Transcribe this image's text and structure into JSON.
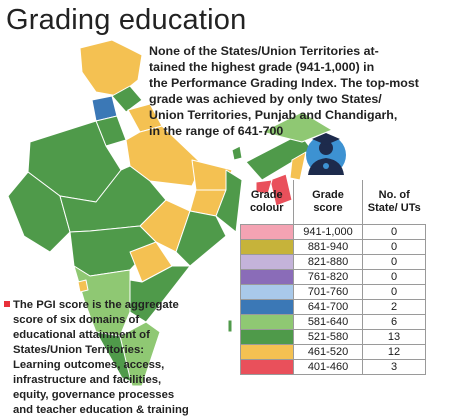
{
  "title": "Grading education",
  "description_lines": [
    "None of the States/Union Territories at-",
    "tained the highest grade (941-1,000) in",
    "the Performance Grading Index. The top-most",
    "grade was achieved by only two States/",
    "Union Territories, Punjab and Chandigarh,",
    "in the range of 641-700"
  ],
  "note_lines": [
    "The PGI score is the aggregate",
    "score of six domains of",
    "educational attainment of",
    "States/Union Territories:",
    "Learning outcomes, access,",
    "infrastructure and facilities,",
    "equity, governance processes",
    "and teacher education & training"
  ],
  "table": {
    "headers": [
      "Grade colour",
      "Grade score",
      "No. of State/ UTs"
    ],
    "rows": [
      {
        "color": "#f4a3b3",
        "score": "941-1,000",
        "count": 0
      },
      {
        "color": "#c6b33a",
        "score": "881-940",
        "count": 0
      },
      {
        "color": "#c4b3da",
        "score": "821-880",
        "count": 0
      },
      {
        "color": "#8a6cb8",
        "score": "761-820",
        "count": 0
      },
      {
        "color": "#a9c9ea",
        "score": "701-760",
        "count": 0
      },
      {
        "color": "#3b78b6",
        "score": "641-700",
        "count": 2
      },
      {
        "color": "#8fc873",
        "score": "581-640",
        "count": 6
      },
      {
        "color": "#4f9a4a",
        "score": "521-580",
        "count": 13
      },
      {
        "color": "#f4c152",
        "score": "461-520",
        "count": 12
      },
      {
        "color": "#e9505b",
        "score": "401-460",
        "count": 3
      }
    ]
  }
}
